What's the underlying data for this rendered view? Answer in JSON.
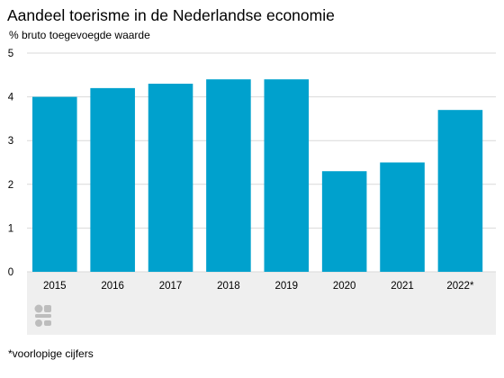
{
  "chart_data": {
    "type": "bar",
    "title": "Aandeel toerisme in de Nederlandse economie",
    "subtitle": "% bruto toegevoegde waarde",
    "categories": [
      "2015",
      "2016",
      "2017",
      "2018",
      "2019",
      "2020",
      "2021",
      "2022*"
    ],
    "values": [
      4.0,
      4.2,
      4.3,
      4.4,
      4.4,
      2.3,
      2.5,
      3.7
    ],
    "ylim": [
      0,
      5
    ],
    "yticks": [
      "0",
      "1",
      "2",
      "3",
      "4",
      "5"
    ],
    "grid": true,
    "legend": "none",
    "bar_color": "#00a1cd",
    "grid_color": "#d9d9d9",
    "xaxis_band_color": "#efefef"
  },
  "footnote": "*voorlopige cijfers",
  "logo": {
    "icon": "cbs-logo-icon",
    "color": "#bdbdbd"
  }
}
